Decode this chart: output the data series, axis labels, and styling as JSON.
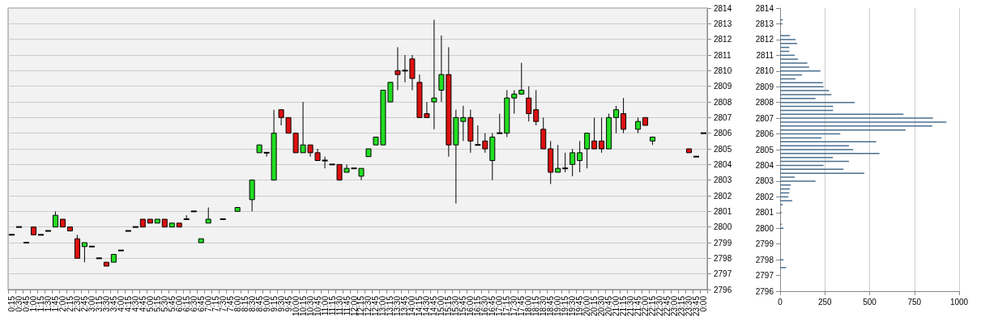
{
  "chart_data": [
    {
      "type": "candlestick",
      "categories": [
        "0:15",
        "0:30",
        "0:45",
        "1:00",
        "1:15",
        "1:30",
        "1:45",
        "2:00",
        "2:15",
        "2:30",
        "2:45",
        "3:00",
        "3:15",
        "3:30",
        "3:45",
        "4:00",
        "4:15",
        "4:30",
        "4:45",
        "5:00",
        "5:15",
        "5:30",
        "5:45",
        "6:00",
        "6:15",
        "6:30",
        "6:45",
        "7:00",
        "7:15",
        "7:30",
        "7:45",
        "8:00",
        "8:15",
        "8:30",
        "8:45",
        "9:00",
        "9:15",
        "9:30",
        "9:45",
        "10:00",
        "10:15",
        "10:30",
        "10:45",
        "11:00",
        "11:15",
        "11:30",
        "11:45",
        "12:00",
        "12:15",
        "12:30",
        "12:45",
        "13:00",
        "13:15",
        "13:30",
        "13:45",
        "14:00",
        "14:15",
        "14:30",
        "14:45",
        "15:00",
        "15:15",
        "15:30",
        "15:45",
        "16:00",
        "16:15",
        "16:30",
        "16:45",
        "17:00",
        "17:15",
        "17:30",
        "17:45",
        "18:00",
        "18:15",
        "18:30",
        "18:45",
        "19:00",
        "19:15",
        "19:30",
        "19:45",
        "20:00",
        "20:15",
        "20:30",
        "20:45",
        "21:00",
        "21:15",
        "21:30",
        "21:45",
        "22:00",
        "22:15",
        "22:30",
        "22:45",
        "23:00",
        "23:15",
        "23:30",
        "23:45",
        "0:00"
      ],
      "ohlc": [
        [
          2799.5,
          2799.5,
          2799.5,
          2799.5
        ],
        [
          2800,
          2800,
          2800,
          2800
        ],
        [
          2799,
          2799,
          2799,
          2799
        ],
        [
          2800,
          2800,
          2799.5,
          2799.5
        ],
        [
          2799.5,
          2799.5,
          2799.5,
          2799.5
        ],
        [
          2799.75,
          2799.75,
          2799.75,
          2799.75
        ],
        [
          2800,
          2801,
          2800,
          2800.75
        ],
        [
          2800.5,
          2800.5,
          2800,
          2800
        ],
        [
          2800,
          2800,
          2799.75,
          2799.75
        ],
        [
          2799.25,
          2799.5,
          2798,
          2798
        ],
        [
          2798.75,
          2799,
          2797.75,
          2799
        ],
        [
          2798.75,
          2798.75,
          2798.75,
          2798.75
        ],
        [
          2798,
          2798,
          2798,
          2798
        ],
        [
          2797.75,
          2797.75,
          2797.5,
          2797.5
        ],
        [
          2797.75,
          2798.25,
          2797.75,
          2798.25
        ],
        [
          2798.5,
          2798.5,
          2798.5,
          2798.5
        ],
        [
          2799.75,
          2799.75,
          2799.75,
          2799.75
        ],
        [
          2800,
          2800,
          2800,
          2800
        ],
        [
          2800.5,
          2800.5,
          2800,
          2800
        ],
        [
          2800.5,
          2800.5,
          2800.25,
          2800.25
        ],
        [
          2800.25,
          2800.5,
          2800.25,
          2800.5
        ],
        [
          2800.5,
          2800.5,
          2800,
          2800
        ],
        [
          2800,
          2800.25,
          2800,
          2800.25
        ],
        [
          2800.25,
          2800.25,
          2800,
          2800
        ],
        [
          2800.5,
          2800.75,
          2800.5,
          2800.5
        ],
        [
          2801,
          2801,
          2801,
          2801
        ],
        [
          2799,
          2799.25,
          2799,
          2799.25
        ],
        [
          2800.25,
          2801.25,
          2800.25,
          2800.5
        ],
        null,
        [
          2800.5,
          2800.5,
          2800.5,
          2800.5
        ],
        null,
        [
          2801,
          2801.25,
          2801,
          2801.25
        ],
        null,
        [
          2801.75,
          2803,
          2801,
          2803
        ],
        [
          2804.75,
          2805.25,
          2804.75,
          2805.25
        ],
        [
          2804.75,
          2804.75,
          2804.5,
          2804.75
        ],
        [
          2803,
          2807.5,
          2803,
          2806
        ],
        [
          2807.5,
          2807.5,
          2806.5,
          2807
        ],
        [
          2807,
          2807,
          2806,
          2806
        ],
        [
          2806,
          2806,
          2804.75,
          2804.75
        ],
        [
          2804.75,
          2808,
          2804.75,
          2805.25
        ],
        [
          2805.25,
          2805.25,
          2804.5,
          2804.75
        ],
        [
          2804.75,
          2805,
          2804.25,
          2804.25
        ],
        [
          2804.25,
          2804.5,
          2803.75,
          2804.25
        ],
        [
          2804,
          2804,
          2804,
          2804
        ],
        [
          2804,
          2804,
          2803,
          2803
        ],
        [
          2803.5,
          2804,
          2803.5,
          2803.75
        ],
        [
          2803.75,
          2803.75,
          2803.75,
          2803.75
        ],
        [
          2803.25,
          2803.75,
          2803,
          2803.75
        ],
        [
          2804.5,
          2805,
          2804.5,
          2805
        ],
        [
          2805.25,
          2805.75,
          2805.25,
          2805.75
        ],
        [
          2805.25,
          2808.75,
          2805.25,
          2808.75
        ],
        [
          2808,
          2809.25,
          2808,
          2809.25
        ],
        [
          2810,
          2811.5,
          2808.75,
          2809.75
        ],
        [
          2810,
          2811,
          2809.25,
          2810
        ],
        [
          2810.75,
          2811,
          2808.75,
          2809.5
        ],
        [
          2809.25,
          2809.75,
          2807,
          2807
        ],
        [
          2807.25,
          2808,
          2807,
          2807
        ],
        [
          2808,
          2813.25,
          2806.25,
          2808.25
        ],
        [
          2808.75,
          2812.25,
          2808,
          2809.75
        ],
        [
          2809.75,
          2811.5,
          2804.5,
          2805.25
        ],
        [
          2805.25,
          2807.5,
          2801.5,
          2807
        ],
        [
          2806.75,
          2807.75,
          2805.5,
          2807
        ],
        [
          2807,
          2807.5,
          2804.75,
          2805.5
        ],
        [
          2805.25,
          2806.5,
          2805.25,
          2805.25
        ],
        [
          2805.5,
          2806,
          2804.75,
          2805
        ],
        [
          2804.25,
          2806,
          2803,
          2805.75
        ],
        [
          2806,
          2807.25,
          2806,
          2806
        ],
        [
          2806,
          2808.75,
          2805.75,
          2808.25
        ],
        [
          2808.25,
          2808.75,
          2807.25,
          2808.5
        ],
        [
          2808.5,
          2810.5,
          2808.5,
          2808.75
        ],
        [
          2808.25,
          2809,
          2806.75,
          2807.25
        ],
        [
          2807.5,
          2808.75,
          2806.5,
          2806.75
        ],
        [
          2806.25,
          2807,
          2805,
          2805
        ],
        [
          2805,
          2805.5,
          2802.75,
          2803.5
        ],
        [
          2803.5,
          2805.25,
          2803.5,
          2803.75
        ],
        [
          2803.75,
          2804.75,
          2803.5,
          2803.75
        ],
        [
          2804,
          2805,
          2803.25,
          2804.75
        ],
        [
          2804.25,
          2805.5,
          2803.5,
          2804.75
        ],
        [
          2805,
          2806,
          2803.75,
          2806
        ],
        [
          2805.5,
          2807,
          2805,
          2805
        ],
        [
          2805.5,
          2807,
          2804.75,
          2805
        ],
        [
          2805,
          2807.25,
          2805,
          2807
        ],
        [
          2807,
          2807.75,
          2806,
          2807.5
        ],
        [
          2807.25,
          2808.25,
          2806,
          2806.25
        ],
        null,
        [
          2806.25,
          2807,
          2806,
          2806.75
        ],
        [
          2807,
          2807,
          2806.5,
          2806.5
        ],
        [
          2805.5,
          2805.75,
          2805.25,
          2805.75
        ],
        null,
        null,
        null,
        null,
        [
          2805,
          2805,
          2804.75,
          2804.75
        ],
        [
          2804.5,
          2804.5,
          2804.5,
          2804.5
        ],
        [
          2806,
          2806,
          2806,
          2806
        ]
      ],
      "colors": [
        "#000000",
        "#000000",
        "#000000",
        "#dd1111",
        "#000000",
        "#000000",
        "#22dd22",
        "#dd1111",
        "#dd1111",
        "#dd1111",
        "#22dd22",
        "#000000",
        "#000000",
        "#dd1111",
        "#22dd22",
        "#000000",
        "#000000",
        "#000000",
        "#dd1111",
        "#dd1111",
        "#22dd22",
        "#dd1111",
        "#22dd22",
        "#dd1111",
        "#000000",
        "#000000",
        "#22dd22",
        "#22dd22",
        null,
        "#000000",
        null,
        "#22dd22",
        null,
        "#22dd22",
        "#22dd22",
        "#000000",
        "#22dd22",
        "#dd1111",
        "#dd1111",
        "#dd1111",
        "#22dd22",
        "#dd1111",
        "#dd1111",
        "#000000",
        "#000000",
        "#dd1111",
        "#22dd22",
        "#000000",
        "#22dd22",
        "#22dd22",
        "#22dd22",
        "#22dd22",
        "#22dd22",
        "#dd1111",
        "#000000",
        "#dd1111",
        "#dd1111",
        "#dd1111",
        "#22dd22",
        "#22dd22",
        "#dd1111",
        "#22dd22",
        "#22dd22",
        "#dd1111",
        "#000000",
        "#dd1111",
        "#22dd22",
        "#000000",
        "#22dd22",
        "#22dd22",
        "#22dd22",
        "#dd1111",
        "#dd1111",
        "#dd1111",
        "#dd1111",
        "#22dd22",
        "#000000",
        "#22dd22",
        "#22dd22",
        "#22dd22",
        "#dd1111",
        "#dd1111",
        "#22dd22",
        "#22dd22",
        "#dd1111",
        null,
        "#22dd22",
        "#dd1111",
        "#22dd22",
        null,
        null,
        null,
        null,
        "#dd1111",
        "#000000",
        "#000000"
      ],
      "ylim": [
        2796,
        2814
      ],
      "yticks": [
        2796,
        2797,
        2798,
        2799,
        2800,
        2801,
        2802,
        2803,
        2804,
        2805,
        2806,
        2807,
        2808,
        2809,
        2810,
        2811,
        2812,
        2813,
        2814
      ],
      "grid": "y"
    },
    {
      "type": "bar",
      "orientation": "horizontal",
      "x": [
        2813.25,
        2813,
        2812.5,
        2812.25,
        2812,
        2811.75,
        2811.5,
        2811.25,
        2811,
        2810.75,
        2810.5,
        2810.25,
        2810,
        2809.75,
        2809.5,
        2809.25,
        2809,
        2808.75,
        2808.5,
        2808.25,
        2808,
        2807.75,
        2807.5,
        2807.25,
        2807,
        2806.75,
        2806.5,
        2806.25,
        2806,
        2805.75,
        2805.5,
        2805.25,
        2805,
        2804.75,
        2804.5,
        2804.25,
        2804,
        2803.75,
        2803.5,
        2803.25,
        2803,
        2802.75,
        2802.5,
        2802.25,
        2802,
        2801.75,
        2801.5,
        2801,
        2800.5,
        2800.25,
        2800,
        2799.5,
        2799,
        2798.5,
        2798,
        2797.75,
        2797.5
      ],
      "values": [
        15,
        13,
        4,
        55,
        86,
        95,
        51,
        51,
        82,
        100,
        152,
        162,
        225,
        122,
        86,
        238,
        243,
        274,
        287,
        198,
        417,
        296,
        296,
        689,
        854,
        929,
        850,
        701,
        336,
        232,
        537,
        385,
        408,
        555,
        295,
        385,
        243,
        354,
        470,
        82,
        198,
        60,
        55,
        51,
        46,
        68,
        15,
        9,
        4,
        9,
        19,
        3,
        4,
        3,
        19,
        4,
        33
      ],
      "color": "#4a6f8f",
      "xlim": [
        0,
        1000
      ],
      "xticks": [
        0,
        250,
        500,
        750,
        1000
      ],
      "ylim": [
        2796,
        2814
      ],
      "yticks": [
        2796,
        2797,
        2798,
        2799,
        2800,
        2801,
        2802,
        2803,
        2804,
        2805,
        2806,
        2807,
        2808,
        2809,
        2810,
        2811,
        2812,
        2813,
        2814
      ],
      "grid": "x"
    }
  ]
}
